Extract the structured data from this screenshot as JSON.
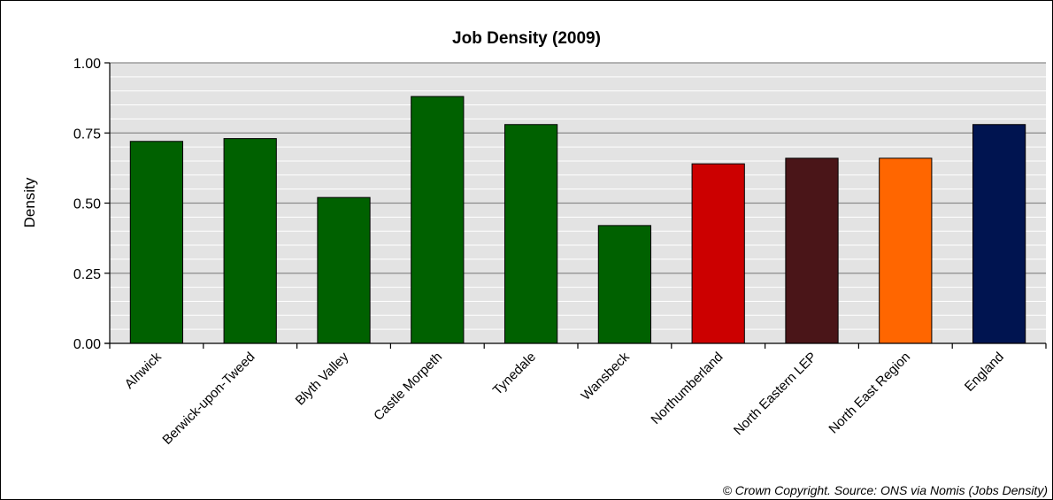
{
  "chart_data": {
    "type": "bar",
    "title": "Job Density (2009)",
    "ylabel": "Density",
    "xlabel": "",
    "ylim": [
      0,
      1
    ],
    "yticks": [
      "0.00",
      "0.25",
      "0.50",
      "0.75",
      "1.00"
    ],
    "ytick_values": [
      0,
      0.25,
      0.5,
      0.75,
      1.0
    ],
    "minor_grid_step": 0.05,
    "grid": true,
    "categories": [
      "Alnwick",
      "Berwick-upon-Tweed",
      "Blyth Valley",
      "Castle Morpeth",
      "Tynedale",
      "Wansbeck",
      "Northumberland",
      "North Eastern LEP",
      "North East Region",
      "England"
    ],
    "values": [
      0.72,
      0.73,
      0.52,
      0.88,
      0.78,
      0.42,
      0.64,
      0.66,
      0.66,
      0.78
    ],
    "colors": [
      "#006100",
      "#006100",
      "#006100",
      "#006100",
      "#006100",
      "#006100",
      "#cc0000",
      "#4a1518",
      "#ff6600",
      "#001450"
    ],
    "plot_background": "#e3e3e3",
    "source": "© Crown Copyright. Source: ONS via Nomis (Jobs Density)"
  }
}
